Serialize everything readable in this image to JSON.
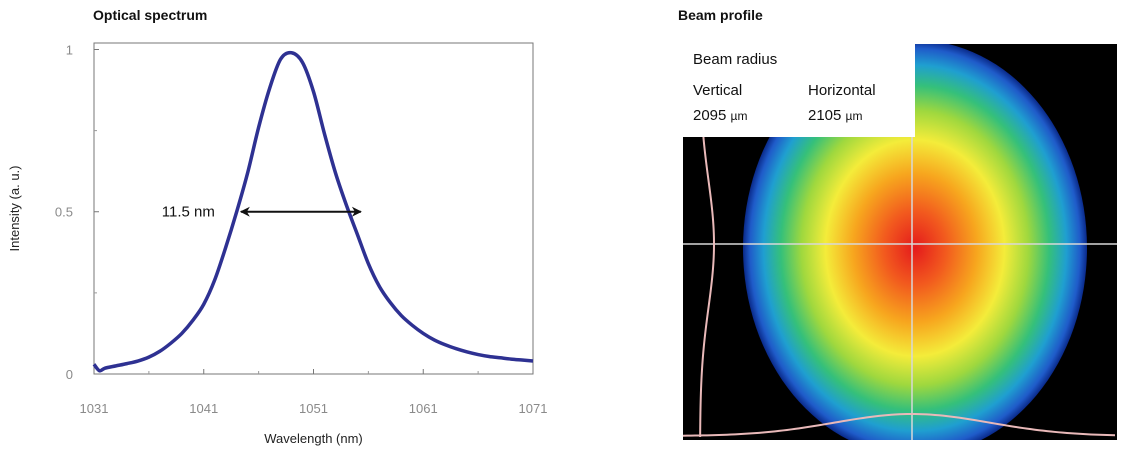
{
  "panels": {
    "spectrum_title": "Optical spectrum",
    "beam_title": "Beam profile"
  },
  "chart_data": {
    "type": "line",
    "title": "Optical spectrum",
    "xlabel": "Wavelength (nm)",
    "ylabel": "Intensity (a. u.)",
    "xlim": [
      1031,
      1071
    ],
    "ylim": [
      0,
      1.02
    ],
    "x_ticks": [
      "1031",
      "1041",
      "1051",
      "1061",
      "1071"
    ],
    "y_ticks": [
      "0",
      "0.5",
      "1"
    ],
    "grid": false,
    "series": [
      {
        "color": "#2e3192",
        "x": [
          1031.0,
          1031.5,
          1032.0,
          1033.0,
          1034.0,
          1035.0,
          1036.0,
          1037.0,
          1038.0,
          1039.0,
          1040.0,
          1041.0,
          1042.0,
          1043.0,
          1044.0,
          1045.0,
          1046.0,
          1047.0,
          1048.0,
          1049.0,
          1050.0,
          1051.0,
          1052.0,
          1053.0,
          1054.0,
          1055.0,
          1056.0,
          1057.0,
          1058.0,
          1059.0,
          1060.0,
          1061.0,
          1062.0,
          1063.0,
          1064.0,
          1065.0,
          1066.0,
          1067.0,
          1068.0,
          1069.0,
          1070.0,
          1071.0
        ],
        "y": [
          0.03,
          0.01,
          0.018,
          0.025,
          0.032,
          0.04,
          0.052,
          0.07,
          0.095,
          0.125,
          0.165,
          0.215,
          0.29,
          0.39,
          0.5,
          0.62,
          0.76,
          0.88,
          0.97,
          0.99,
          0.96,
          0.87,
          0.74,
          0.62,
          0.52,
          0.43,
          0.34,
          0.27,
          0.22,
          0.18,
          0.15,
          0.125,
          0.105,
          0.09,
          0.078,
          0.068,
          0.06,
          0.054,
          0.05,
          0.046,
          0.043,
          0.04
        ]
      }
    ],
    "annotations": [
      {
        "text": "11.5 nm",
        "x_from": 1044.2,
        "x_to": 1055.5,
        "y": 0.5
      }
    ]
  },
  "beam": {
    "header": "Beam radius",
    "vertical_label": "Vertical",
    "vertical_value": "2095",
    "horizontal_label": "Horizontal",
    "horizontal_value": "2105",
    "unit": "µm"
  }
}
